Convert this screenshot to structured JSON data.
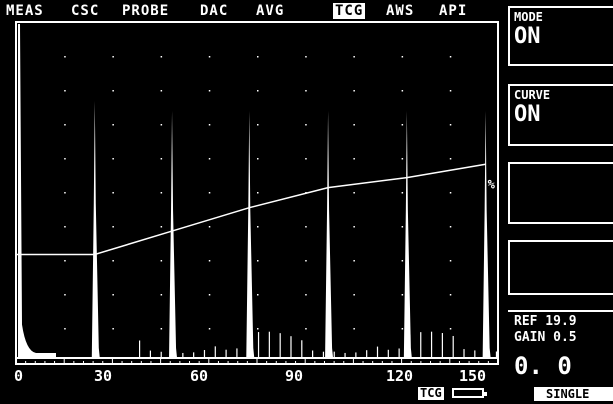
{
  "menu": {
    "items": [
      {
        "label": "MEAS",
        "active": false
      },
      {
        "label": "CSC",
        "active": false
      },
      {
        "label": "PROBE",
        "active": false
      },
      {
        "label": "DAC",
        "active": false
      },
      {
        "label": "AVG",
        "active": false
      },
      {
        "label": "TCG",
        "active": true
      },
      {
        "label": "AWS",
        "active": false
      },
      {
        "label": "API",
        "active": false
      }
    ]
  },
  "panels": {
    "mode": {
      "label": "MODE",
      "value": "ON"
    },
    "curve": {
      "label": "CURVE",
      "value": "ON"
    },
    "blank1": {
      "label": "",
      "value": ""
    },
    "blank2": {
      "label": "",
      "value": ""
    }
  },
  "chart_data": {
    "type": "line",
    "x_ticks": [
      "0",
      "30",
      "60",
      "90",
      "120",
      "150"
    ],
    "xlim": [
      0,
      156
    ],
    "ylim": [
      0,
      100
    ],
    "grid": true,
    "signal_peaks": [
      {
        "x": 0,
        "amplitude": 100
      },
      {
        "x": 25.5,
        "amplitude": 77
      },
      {
        "x": 50.5,
        "amplitude": 74
      },
      {
        "x": 75.5,
        "amplitude": 74
      },
      {
        "x": 101,
        "amplitude": 74
      },
      {
        "x": 126.5,
        "amplitude": 74
      },
      {
        "x": 152,
        "amplitude": 74
      }
    ],
    "tcg_curve": [
      {
        "x": 0,
        "y": 31
      },
      {
        "x": 25.5,
        "y": 31
      },
      {
        "x": 50.5,
        "y": 38
      },
      {
        "x": 75.5,
        "y": 45
      },
      {
        "x": 101,
        "y": 51
      },
      {
        "x": 126.5,
        "y": 54
      },
      {
        "x": 152,
        "y": 58
      }
    ],
    "curve_marker": "%"
  },
  "status": {
    "ref_text": "REF 19.9",
    "gain_text": "GAIN 0.5",
    "big_value": "0. 0",
    "tcg_indicator": "TCG",
    "mode_button": "SINGLE"
  }
}
